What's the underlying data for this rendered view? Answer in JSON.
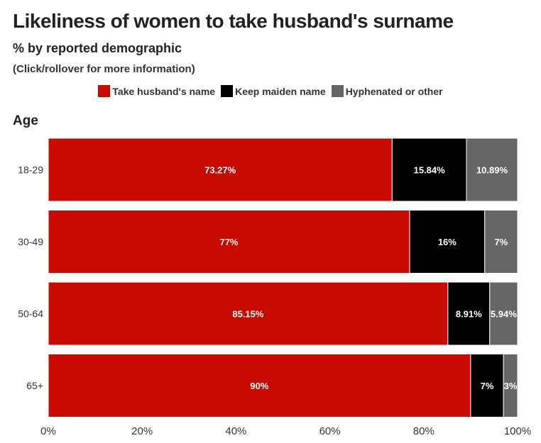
{
  "title": "Likeliness of women to take husband's surname",
  "subtitle": "% by reported demographic",
  "note": "(Click/rollover for more information)",
  "chart_data": {
    "type": "bar",
    "orientation": "horizontal",
    "stacked": true,
    "group_label": "Age",
    "categories": [
      "18-29",
      "30-49",
      "50-64",
      "65+"
    ],
    "series": [
      {
        "name": "Take husband's name",
        "color": "#c80a00",
        "values": [
          73.27,
          77,
          85.15,
          90
        ],
        "labels": [
          "73.27%",
          "77%",
          "85.15%",
          "90%"
        ]
      },
      {
        "name": "Keep maiden name",
        "color": "#000000",
        "values": [
          15.84,
          16,
          8.91,
          7
        ],
        "labels": [
          "15.84%",
          "16%",
          "8.91%",
          "7%"
        ]
      },
      {
        "name": "Hyphenated or other",
        "color": "#666666",
        "values": [
          10.89,
          7,
          5.94,
          3
        ],
        "labels": [
          "10.89%",
          "7%",
          "5.94%",
          "3%"
        ]
      }
    ],
    "xlim": [
      0,
      100
    ],
    "xticks": [
      "0%",
      "20%",
      "40%",
      "60%",
      "80%",
      "100%"
    ],
    "legend_position": "top-center",
    "grid": false
  }
}
